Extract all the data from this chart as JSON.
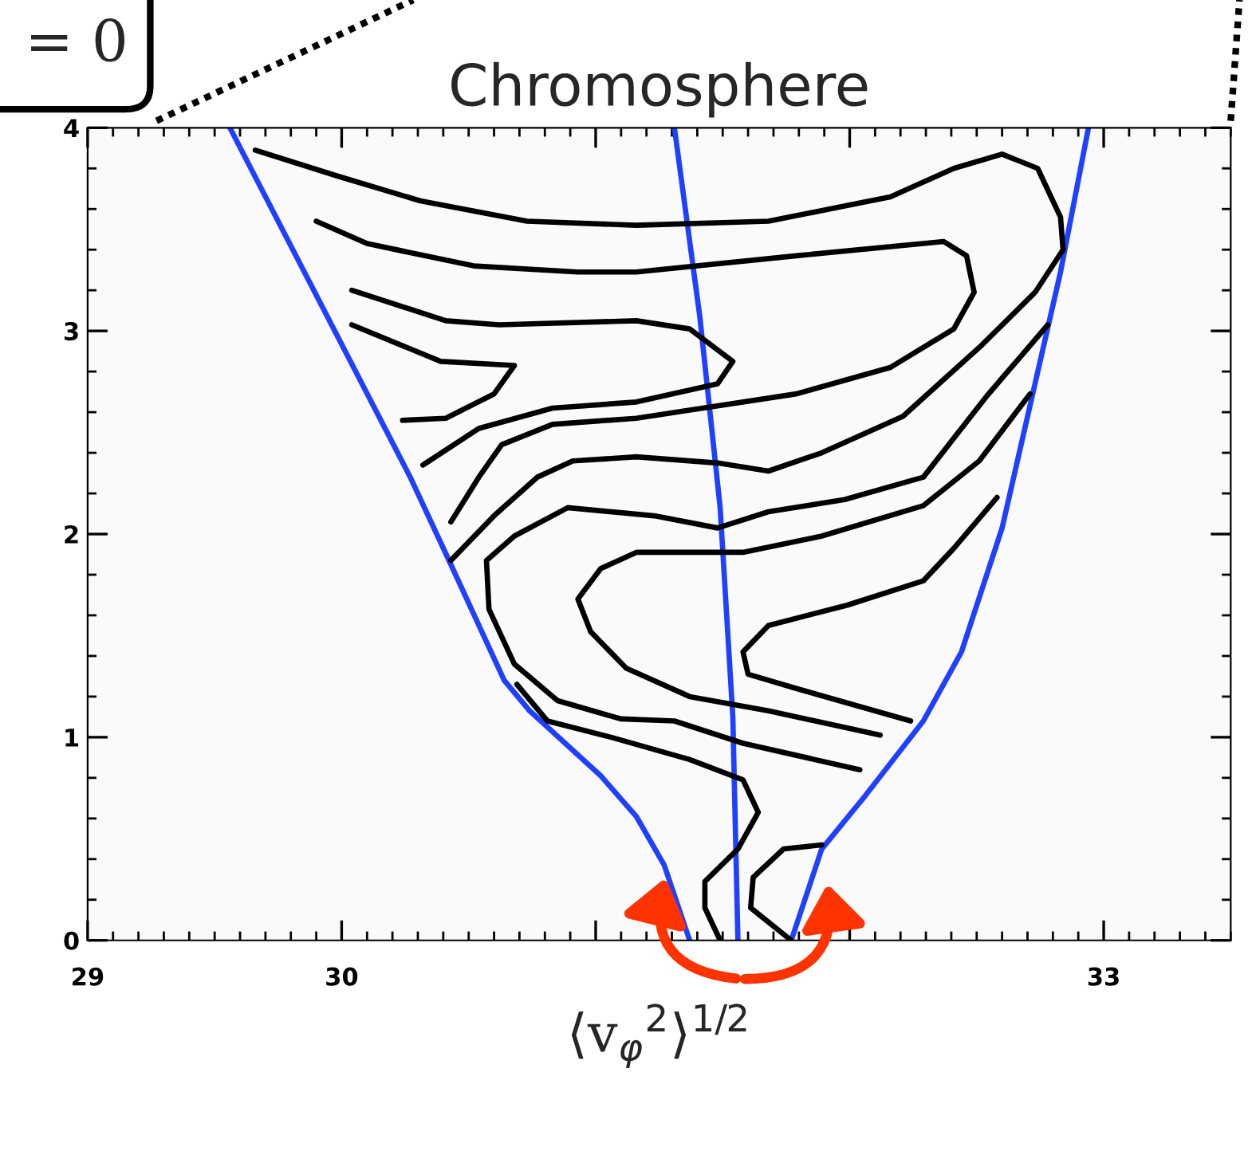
{
  "chart_data": {
    "type": "line",
    "title": "Chromosphere",
    "xlabel": "⟨v$_{φ}$$^{2}$⟩$^{1/2}$",
    "annotations": [
      "= 0"
    ],
    "xlim": [
      29,
      33.5
    ],
    "ylim": [
      0,
      4
    ],
    "xticks": [
      29,
      30,
      {
        "value": 31,
        "label": null
      },
      {
        "value": 32,
        "label": null
      },
      33
    ],
    "yticks": [
      0,
      1,
      2,
      3,
      4
    ],
    "series": [
      {
        "color": "#2040ff",
        "x": [
          29.56,
          30.27,
          30.43,
          30.64,
          30.74,
          31.02,
          31.16,
          31.27,
          31.37
        ],
        "values": [
          4.0,
          2.28,
          1.85,
          1.28,
          1.13,
          0.81,
          0.61,
          0.37,
          0
        ]
      },
      {
        "color": "#2040ff",
        "x": [
          31.31,
          31.41,
          31.49,
          31.54,
          31.56
        ],
        "values": [
          4.0,
          3.07,
          2.13,
          1.1,
          0
        ]
      },
      {
        "color": "#2040ff",
        "x": [
          32.94,
          32.83,
          32.6,
          32.44,
          32.29,
          32.06,
          31.89,
          31.77
        ],
        "values": [
          4.0,
          3.29,
          2.03,
          1.42,
          1.08,
          0.71,
          0.45,
          0
        ]
      },
      {
        "color": "#000000",
        "x": [
          29.66,
          29.99,
          30.31,
          30.73,
          31.16,
          31.68,
          32.16,
          32.41,
          32.6,
          32.74,
          32.83,
          32.84,
          32.73,
          32.52,
          32.21,
          31.89,
          31.68,
          31.48,
          31.16,
          30.91,
          30.77,
          30.6,
          30.43
        ],
        "values": [
          3.89,
          3.76,
          3.64,
          3.54,
          3.52,
          3.54,
          3.66,
          3.8,
          3.87,
          3.8,
          3.56,
          3.4,
          3.19,
          2.93,
          2.58,
          2.4,
          2.31,
          2.35,
          2.38,
          2.36,
          2.28,
          2.09,
          1.87
        ]
      },
      {
        "color": "#000000",
        "x": [
          29.9,
          30.1,
          30.52,
          30.93,
          31.16,
          31.79,
          32.37,
          32.46,
          32.49,
          32.41,
          32.16,
          31.79,
          31.37,
          31.16,
          30.83,
          30.63,
          30.54,
          30.43
        ],
        "values": [
          3.54,
          3.43,
          3.32,
          3.29,
          3.29,
          3.37,
          3.44,
          3.37,
          3.19,
          3.01,
          2.82,
          2.69,
          2.61,
          2.57,
          2.54,
          2.44,
          2.28,
          2.06
        ]
      },
      {
        "color": "#000000",
        "x": [
          30.04,
          30.41,
          30.62,
          31.16,
          31.37,
          31.54,
          31.48,
          31.16,
          30.83,
          30.54,
          30.32
        ],
        "values": [
          3.2,
          3.05,
          3.03,
          3.05,
          3.01,
          2.85,
          2.74,
          2.65,
          2.62,
          2.52,
          2.34
        ]
      },
      {
        "color": "#000000",
        "x": [
          30.04,
          30.39,
          30.68,
          30.6,
          30.41,
          30.24
        ],
        "values": [
          3.03,
          2.85,
          2.83,
          2.69,
          2.57,
          2.56
        ]
      },
      {
        "color": "#000000",
        "x": [
          32.78,
          32.54,
          32.29,
          31.98,
          31.68,
          31.48,
          31.23,
          30.89,
          30.68,
          30.57,
          30.58,
          30.68,
          30.85,
          31.1,
          31.31,
          31.58,
          32.04
        ],
        "values": [
          3.03,
          2.68,
          2.28,
          2.17,
          2.11,
          2.03,
          2.09,
          2.13,
          1.99,
          1.87,
          1.63,
          1.36,
          1.18,
          1.09,
          1.08,
          0.97,
          0.84
        ]
      },
      {
        "color": "#000000",
        "x": [
          32.71,
          32.51,
          32.29,
          31.89,
          31.58,
          31.16,
          31.02,
          30.93,
          30.98,
          31.12,
          31.37,
          31.68,
          32.12
        ],
        "values": [
          2.69,
          2.36,
          2.14,
          1.99,
          1.91,
          1.91,
          1.83,
          1.68,
          1.52,
          1.34,
          1.2,
          1.13,
          1.01
        ]
      },
      {
        "color": "#000000",
        "x": [
          32.58,
          32.41,
          32.29,
          31.99,
          31.68,
          31.58,
          31.6,
          31.79,
          32.24
        ],
        "values": [
          2.18,
          1.93,
          1.77,
          1.65,
          1.55,
          1.42,
          1.31,
          1.24,
          1.08
        ]
      },
      {
        "color": "#000000",
        "x": [
          30.69,
          30.81,
          31.06,
          31.37,
          31.58,
          31.64,
          31.56,
          31.43,
          31.43,
          31.49
        ],
        "values": [
          1.26,
          1.08,
          1.0,
          0.89,
          0.79,
          0.63,
          0.45,
          0.29,
          0.16,
          0
        ]
      },
      {
        "color": "#000000",
        "x": [
          31.89,
          31.74,
          31.62,
          31.61,
          31.77
        ],
        "values": [
          0.47,
          0.45,
          0.31,
          0.16,
          0
        ]
      }
    ]
  }
}
